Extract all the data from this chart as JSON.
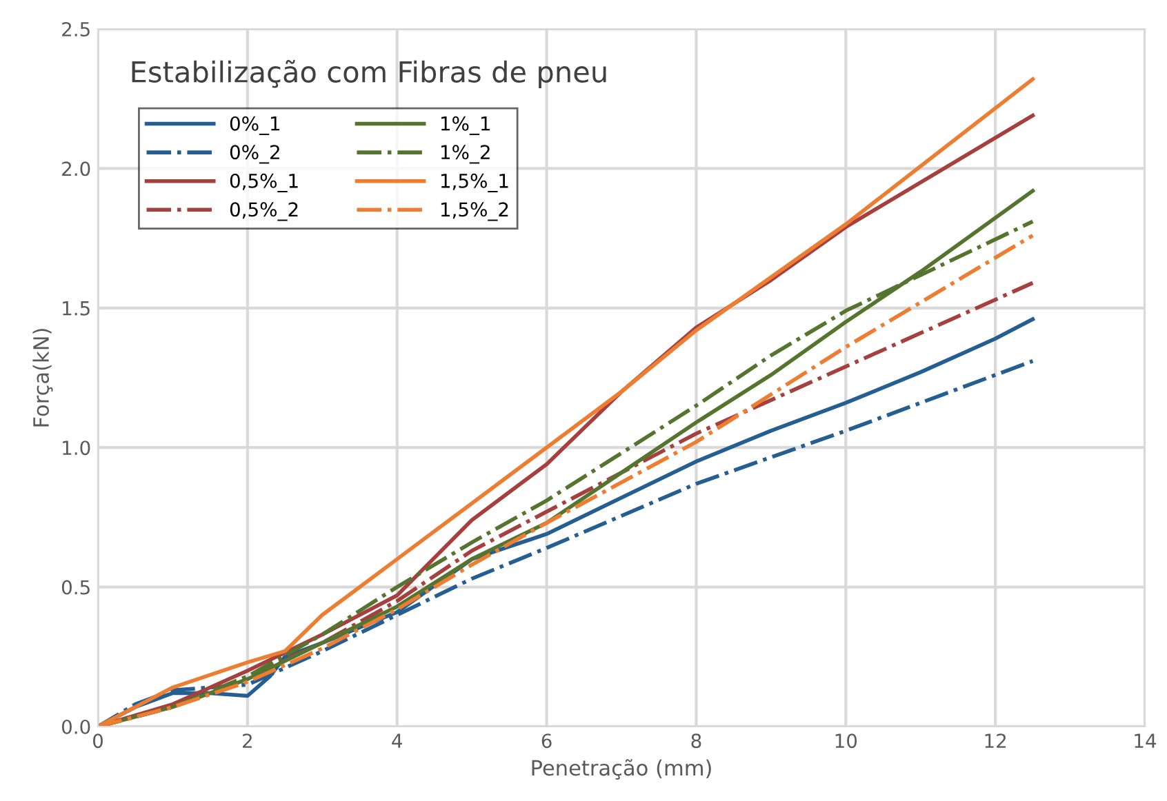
{
  "chart_data": {
    "type": "line",
    "xlabel": "Penetração (mm)",
    "ylabel": "Força(kN)",
    "legend_title": "Estabilização com Fibras de pneu",
    "xlim": [
      0,
      14
    ],
    "xticks": [
      0,
      2,
      4,
      6,
      8,
      10,
      12,
      14
    ],
    "ylim": [
      0,
      2.5
    ],
    "yticks": [
      {
        "value": 0,
        "label": "0.0"
      },
      {
        "value": 0.5,
        "label": "0.5"
      },
      {
        "value": 1,
        "label": "1.0"
      },
      {
        "value": 1.5,
        "label": "1.5"
      },
      {
        "value": 2,
        "label": "2.0"
      },
      {
        "value": 2.5,
        "label": "2.5"
      }
    ],
    "grid": true,
    "legend": "top left",
    "marker": "none",
    "series": [
      {
        "name": "0%_1",
        "color": "#255e91",
        "line_style": "solid",
        "x": [
          0,
          0.5,
          1,
          1.5,
          2,
          2.3,
          2.5,
          3,
          4,
          5,
          6,
          7,
          8,
          9,
          10,
          11,
          12,
          12.5
        ],
        "values": [
          0,
          0.07,
          0.12,
          0.12,
          0.11,
          0.18,
          0.25,
          0.3,
          0.41,
          0.6,
          0.69,
          0.82,
          0.95,
          1.06,
          1.16,
          1.27,
          1.39,
          1.46
        ]
      },
      {
        "name": "0%_2",
        "color": "#255e91",
        "line_style": "dashdot",
        "x": [
          0,
          0.5,
          1,
          2,
          3,
          4,
          5,
          6,
          8,
          10,
          12.5
        ],
        "values": [
          0,
          0.08,
          0.13,
          0.15,
          0.27,
          0.4,
          0.53,
          0.64,
          0.87,
          1.06,
          1.31
        ]
      },
      {
        "name": "0,5%_1",
        "color": "#a5403e",
        "line_style": "solid",
        "x": [
          0,
          1,
          2,
          3,
          4,
          5,
          6,
          7,
          8,
          9,
          10,
          11,
          12.5
        ],
        "values": [
          0,
          0.08,
          0.2,
          0.33,
          0.47,
          0.74,
          0.94,
          1.2,
          1.43,
          1.6,
          1.79,
          1.95,
          2.19
        ]
      },
      {
        "name": "0,5%_2",
        "color": "#a5403e",
        "line_style": "dashdot",
        "x": [
          0,
          1,
          2,
          3,
          4,
          5,
          6,
          8,
          10,
          12.5
        ],
        "values": [
          0,
          0.07,
          0.18,
          0.3,
          0.45,
          0.63,
          0.77,
          1.05,
          1.29,
          1.59
        ]
      },
      {
        "name": "1%_1",
        "color": "#55752f",
        "line_style": "solid",
        "x": [
          0,
          1,
          2,
          3,
          4,
          5,
          6,
          7,
          8,
          9,
          10,
          11,
          12.5
        ],
        "values": [
          0,
          0.07,
          0.17,
          0.3,
          0.43,
          0.6,
          0.73,
          0.91,
          1.09,
          1.26,
          1.45,
          1.63,
          1.92
        ]
      },
      {
        "name": "1%_2",
        "color": "#55752f",
        "line_style": "dashdot",
        "x": [
          0,
          1,
          2,
          3,
          4,
          5,
          6,
          8,
          9,
          10,
          12.5
        ],
        "values": [
          0,
          0.07,
          0.18,
          0.33,
          0.5,
          0.66,
          0.81,
          1.15,
          1.33,
          1.49,
          1.81
        ]
      },
      {
        "name": "1,5%_1",
        "color": "#ed7d31",
        "line_style": "solid",
        "x": [
          0,
          1,
          2,
          2.5,
          3,
          4,
          5,
          6,
          7,
          8,
          10,
          12.5
        ],
        "values": [
          0,
          0.14,
          0.23,
          0.27,
          0.4,
          0.6,
          0.8,
          1.0,
          1.2,
          1.42,
          1.8,
          2.32
        ]
      },
      {
        "name": "1,5%_2",
        "color": "#ed7d31",
        "line_style": "dashdot",
        "x": [
          0,
          1,
          2,
          3,
          4,
          5,
          6,
          8,
          10,
          12.5
        ],
        "values": [
          0,
          0.07,
          0.16,
          0.28,
          0.42,
          0.58,
          0.73,
          1.02,
          1.36,
          1.76
        ]
      }
    ]
  }
}
